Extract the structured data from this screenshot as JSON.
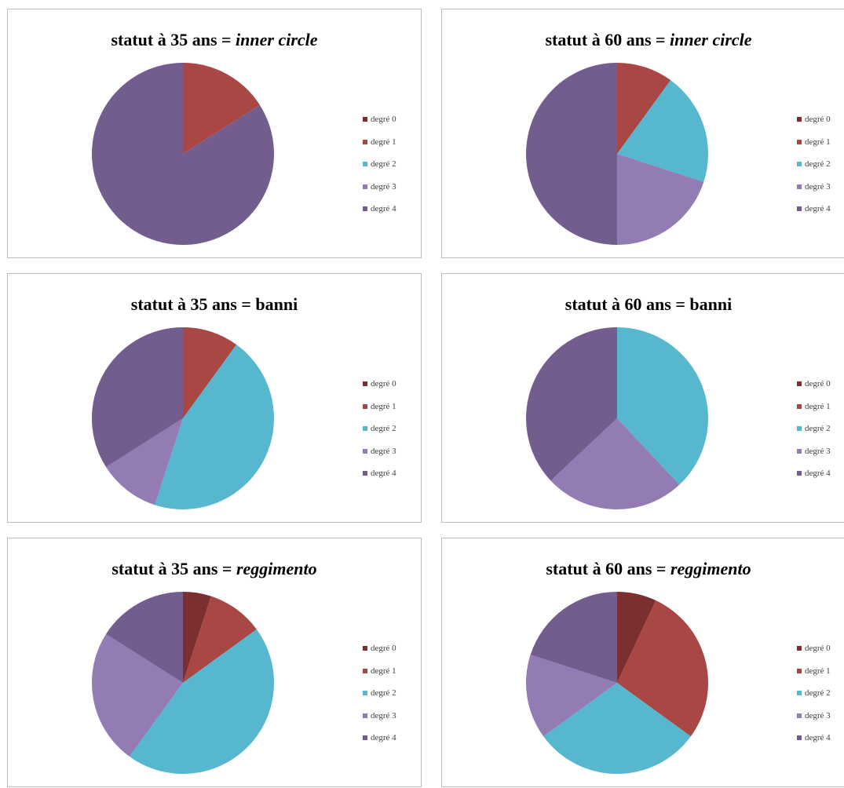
{
  "colors": [
    "#7b2f30",
    "#a84743",
    "#57b7cf",
    "#937bb4",
    "#735c8e"
  ],
  "legend_labels": [
    "degré 0",
    "degré 1",
    "degré 2",
    "degré 3",
    "degré 4"
  ],
  "chart_data": [
    {
      "type": "pie",
      "title_prefix": "statut à 35 ans = ",
      "title_suffix": "inner circle",
      "title_suffix_italic": true,
      "categories": [
        "degré 0",
        "degré 1",
        "degré 2",
        "degré 3",
        "degré 4"
      ],
      "values": [
        0,
        16,
        0,
        0,
        84
      ],
      "legend": "right"
    },
    {
      "type": "pie",
      "title_prefix": "statut à 60 ans = ",
      "title_suffix": "inner circle",
      "title_suffix_italic": true,
      "categories": [
        "degré 0",
        "degré 1",
        "degré 2",
        "degré 3",
        "degré 4"
      ],
      "values": [
        0,
        10,
        20,
        20,
        50
      ],
      "legend": "right"
    },
    {
      "type": "pie",
      "title_prefix": "statut à 35 ans = ",
      "title_suffix": "banni",
      "title_suffix_italic": false,
      "categories": [
        "degré 0",
        "degré 1",
        "degré 2",
        "degré 3",
        "degré 4"
      ],
      "values": [
        0,
        10,
        45,
        11,
        34
      ],
      "legend": "right"
    },
    {
      "type": "pie",
      "title_prefix": "statut à 60 ans = ",
      "title_suffix": "banni",
      "title_suffix_italic": false,
      "categories": [
        "degré 0",
        "degré 1",
        "degré 2",
        "degré 3",
        "degré 4"
      ],
      "values": [
        0,
        0,
        38,
        25,
        37
      ],
      "legend": "right"
    },
    {
      "type": "pie",
      "title_prefix": "statut à 35 ans = ",
      "title_suffix": "reggimento",
      "title_suffix_italic": true,
      "categories": [
        "degré 0",
        "degré 1",
        "degré 2",
        "degré 3",
        "degré 4"
      ],
      "values": [
        5,
        10,
        45,
        24,
        16
      ],
      "legend": "right"
    },
    {
      "type": "pie",
      "title_prefix": "statut à 60 ans = ",
      "title_suffix": "reggimento",
      "title_suffix_italic": true,
      "categories": [
        "degré 0",
        "degré 1",
        "degré 2",
        "degré 3",
        "degré 4"
      ],
      "values": [
        7,
        28,
        30,
        15,
        20
      ],
      "legend": "right"
    }
  ]
}
